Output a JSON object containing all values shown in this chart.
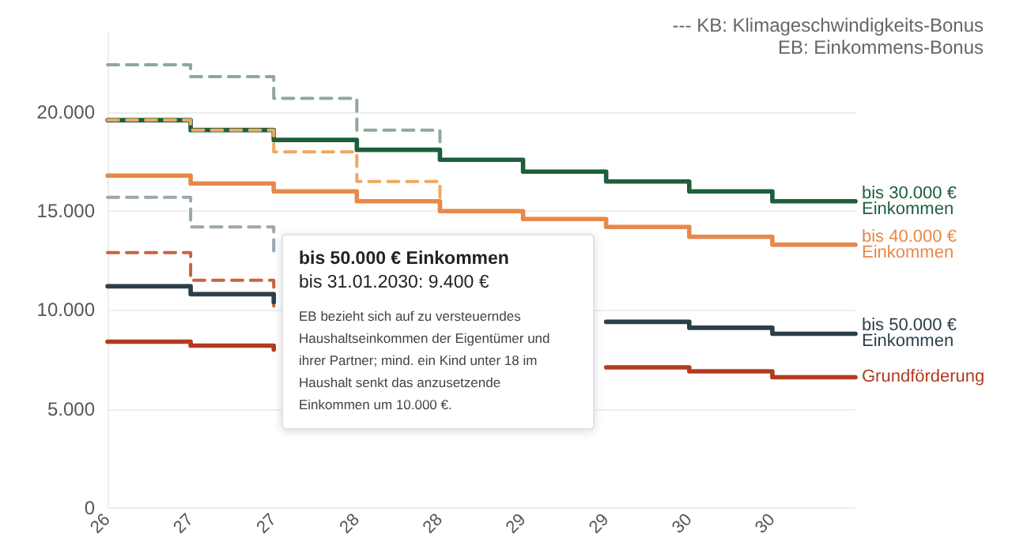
{
  "chart_data": {
    "type": "step",
    "annotations": [
      "--- KB: Klimageschwindigkeits-Bonus",
      "EB: Einkommens-Bonus",
      "bis 50.000 € Einkommen",
      "bis 31.01.2030: 9.400 €",
      "EB bezieht sich auf zu versteuerndes\nHaushaltseinkommen der Eigentümer und\nihrer Partner; mind. ein Kind unter 18 im\nHaushalt senkt das anzusetzende\nEinkommen um 10.000 €."
    ],
    "categories": [
      "26",
      "27",
      "27",
      "28",
      "28",
      "29",
      "29",
      "30",
      "30",
      null
    ],
    "ylim": [
      0,
      24000
    ],
    "yticks": [
      {
        "value": 0,
        "label": "0"
      },
      {
        "value": 5000,
        "label": "5.000"
      },
      {
        "value": 10000,
        "label": "10.000"
      },
      {
        "value": 15000,
        "label": "15.000"
      },
      {
        "value": 20000,
        "label": "20.000"
      }
    ],
    "grid": "y",
    "legend": false,
    "marker": "none",
    "series": [
      {
        "color": "#8fa898",
        "line_style": "dashed",
        "values": [
          22400,
          21800,
          20700,
          19100,
          17600,
          null,
          null,
          null,
          null,
          null
        ]
      },
      {
        "name": "bis 30.000 €\nEinkommen",
        "color": "#1e5e3a",
        "line_style": "solid",
        "values": [
          19600,
          19100,
          18600,
          18100,
          17600,
          17000,
          16500,
          16000,
          15500,
          15500
        ]
      },
      {
        "color": "#f0a860",
        "line_style": "dashed",
        "values": [
          19600,
          19100,
          18000,
          16500,
          15000,
          null,
          null,
          null,
          null,
          null
        ]
      },
      {
        "name": "bis 40.000 €\nEinkommen",
        "color": "#e8884a",
        "line_style": "solid",
        "values": [
          16800,
          16400,
          16000,
          15500,
          15000,
          14600,
          14200,
          13700,
          13300,
          13300
        ]
      },
      {
        "color": "#9aa7b0",
        "line_style": "dashed",
        "values": [
          15700,
          14200,
          12700,
          null,
          null,
          null,
          null,
          null,
          null,
          null
        ]
      },
      {
        "color": "#c8643c",
        "line_style": "dashed",
        "values": [
          12900,
          11500,
          10200,
          null,
          null,
          null,
          null,
          null,
          null,
          null
        ]
      },
      {
        "name": "bis 50.000 €\nEinkommen",
        "color": "#2b3f4a",
        "line_style": "solid",
        "values": [
          11200,
          10800,
          10400,
          null,
          null,
          null,
          9400,
          9100,
          8800,
          8800
        ]
      },
      {
        "name": "Grundförderung",
        "color": "#b23a1e",
        "line_style": "solid",
        "values": [
          8400,
          8200,
          8000,
          null,
          null,
          null,
          7100,
          6900,
          6600,
          6600
        ]
      }
    ]
  }
}
